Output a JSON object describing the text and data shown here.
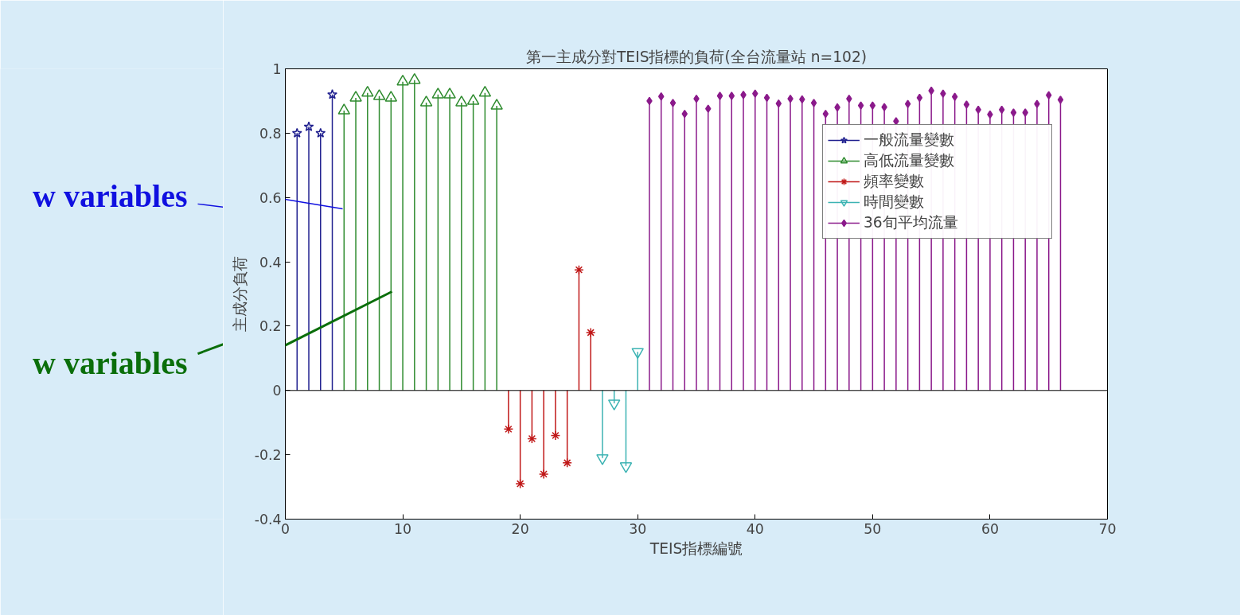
{
  "chart_data": {
    "type": "lollipop",
    "title": "第一主成分對TEIS指標的負荷(全台流量站 n=102)",
    "xlabel": "TEIS指標編號",
    "ylabel": "主成分負荷",
    "xlim": [
      0,
      70
    ],
    "xticks": [
      0,
      10,
      20,
      30,
      40,
      50,
      60,
      70
    ],
    "ylim": [
      -0.4,
      1
    ],
    "yticks": [
      {
        "value": -0.4,
        "label": "-0.4"
      },
      {
        "value": -0.2,
        "label": "-0.2"
      },
      0,
      {
        "value": 0.2,
        "label": "0.2"
      },
      {
        "value": 0.4,
        "label": "0.4"
      },
      {
        "value": 0.6,
        "label": "0.6"
      },
      {
        "value": 0.8,
        "label": "0.8"
      },
      1
    ],
    "grid": false,
    "legend": "top right",
    "ref_lines": [
      {
        "axis": "y",
        "value": 0
      }
    ],
    "series": [
      {
        "name": "一般流量變數",
        "color": "#20208f",
        "marker": "star",
        "x": [
          1,
          2,
          3,
          4
        ],
        "values": [
          0.8,
          0.82,
          0.8,
          0.92
        ]
      },
      {
        "name": "高低流量變數",
        "color": "#2e8b2e",
        "marker": "triangle",
        "x": [
          5,
          6,
          7,
          8,
          9,
          10,
          11,
          12,
          13,
          14,
          15,
          16,
          17,
          18
        ],
        "values": [
          0.87,
          0.91,
          0.925,
          0.915,
          0.91,
          0.96,
          0.965,
          0.895,
          0.92,
          0.92,
          0.895,
          0.9,
          0.925,
          0.885
        ]
      },
      {
        "name": "頻率變數",
        "color": "#c01818",
        "marker": "cross",
        "x": [
          19,
          20,
          21,
          22,
          23,
          24,
          25,
          26
        ],
        "values": [
          -0.12,
          -0.29,
          -0.15,
          -0.26,
          -0.14,
          -0.225,
          0.375,
          0.18
        ]
      },
      {
        "name": "時間變數",
        "color": "#3cb3b3",
        "marker": "triangle",
        "x": [
          27,
          28,
          29,
          30
        ],
        "values": [
          -0.21,
          -0.04,
          -0.235,
          0.12
        ]
      },
      {
        "name": "36旬平均流量",
        "color": "#8b1a8b",
        "marker": "diamond",
        "x": [
          31,
          32,
          33,
          34,
          35,
          36,
          37,
          38,
          39,
          40,
          41,
          42,
          43,
          44,
          45,
          46,
          47,
          48,
          49,
          50,
          51,
          52,
          53,
          54,
          55,
          56,
          57,
          58,
          59,
          60,
          61,
          62,
          63,
          64,
          65,
          66
        ],
        "values": [
          0.9,
          0.914,
          0.894,
          0.86,
          0.907,
          0.876,
          0.916,
          0.916,
          0.919,
          0.923,
          0.91,
          0.892,
          0.907,
          0.905,
          0.894,
          0.86,
          0.88,
          0.907,
          0.886,
          0.886,
          0.881,
          0.837,
          0.891,
          0.91,
          0.932,
          0.923,
          0.913,
          0.889,
          0.873,
          0.858,
          0.873,
          0.864,
          0.864,
          0.891,
          0.918,
          0.904
        ]
      }
    ],
    "annotations": [
      "w variables",
      "w variables"
    ]
  }
}
